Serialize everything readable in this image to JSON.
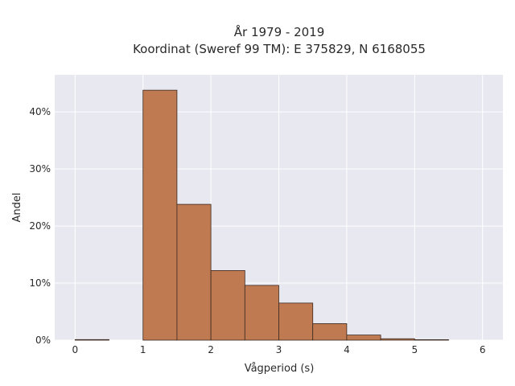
{
  "chart_data": {
    "type": "bar",
    "title_line1": "År 1979 - 2019",
    "title_line2": "Koordinat (Sweref 99 TM): E 375829, N 6168055",
    "xlabel": "Vågperiod (s)",
    "ylabel": "Andel",
    "xlim": [
      -0.3,
      6.3
    ],
    "ylim": [
      0,
      46.5
    ],
    "x_ticks": [
      0,
      1,
      2,
      3,
      4,
      5,
      6
    ],
    "x_tick_labels": [
      "0",
      "1",
      "2",
      "3",
      "4",
      "5",
      "6"
    ],
    "y_ticks": [
      0,
      10,
      20,
      30,
      40
    ],
    "y_tick_labels": [
      "0%",
      "10%",
      "20%",
      "30%",
      "40%"
    ],
    "bins": [
      {
        "x0": 0.0,
        "x1": 0.5,
        "value": 0.1
      },
      {
        "x0": 0.5,
        "x1": 1.0,
        "value": 0.0
      },
      {
        "x0": 1.0,
        "x1": 1.5,
        "value": 43.8
      },
      {
        "x0": 1.5,
        "x1": 2.0,
        "value": 23.8
      },
      {
        "x0": 2.0,
        "x1": 2.5,
        "value": 12.2
      },
      {
        "x0": 2.5,
        "x1": 3.0,
        "value": 9.6
      },
      {
        "x0": 3.0,
        "x1": 3.5,
        "value": 6.5
      },
      {
        "x0": 3.5,
        "x1": 4.0,
        "value": 2.9
      },
      {
        "x0": 4.0,
        "x1": 4.5,
        "value": 0.9
      },
      {
        "x0": 4.5,
        "x1": 5.0,
        "value": 0.25
      },
      {
        "x0": 5.0,
        "x1": 5.5,
        "value": 0.08
      }
    ],
    "bar_color": "#c07a52",
    "bar_edge_color": "#3a2a20",
    "plot_background": "#e8e8f0",
    "grid": true,
    "grid_color": "#ffffff"
  }
}
